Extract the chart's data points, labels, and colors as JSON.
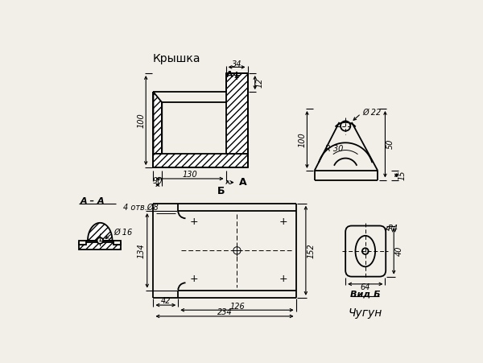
{
  "bg_color": "#f2efe9",
  "title_kryshka": "Крышка",
  "label_aa": "А – А",
  "label_vidb": "Вид Б",
  "label_chugun": "Чугун",
  "dim_34": "34",
  "dim_130": "130",
  "dim_90": "90",
  "dim_12": "12",
  "dim_100": "100",
  "dim_22": "Ø 22",
  "dim_R30": "R 30",
  "dim_50": "50",
  "dim_15": "15",
  "dim_16": "Ø 16",
  "dim_4otv8": "4 отв.Ø8",
  "dim_134": "134",
  "dim_152": "152",
  "dim_42": "42",
  "dim_126": "126",
  "dim_234": "234",
  "dim_R4": "R4",
  "dim_40": "40",
  "dim_64": "64"
}
